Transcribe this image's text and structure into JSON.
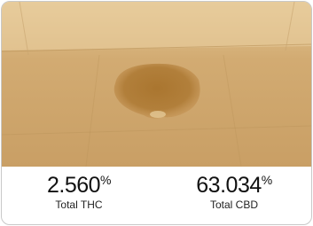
{
  "stats": [
    {
      "value": "2.560",
      "unit": "%",
      "label": "Total THC"
    },
    {
      "value": "63.034",
      "unit": "%",
      "label": "Total CBD"
    }
  ]
}
